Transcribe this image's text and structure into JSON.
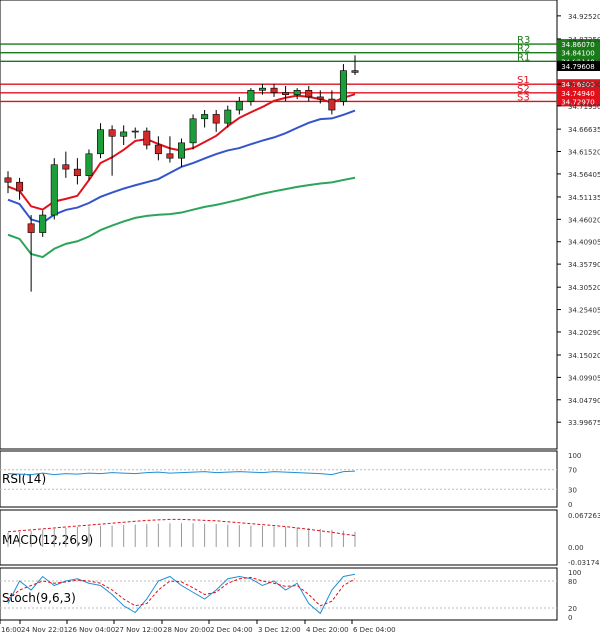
{
  "chart_data": {
    "type": "candlestick",
    "instrument_title": "",
    "main_panel": {
      "ylim": [
        33.94,
        34.95
      ],
      "price_ticks": [
        "34.92520",
        "34.87250",
        "34.82140",
        "34.76900",
        "34.71950",
        "34.66635",
        "34.61520",
        "34.56405",
        "34.51135",
        "34.46020",
        "34.40905",
        "34.35790",
        "34.30520",
        "34.25405",
        "34.20290",
        "34.15020",
        "34.09905",
        "34.04790",
        "33.99675"
      ],
      "current_price": "34.79608",
      "levels": [
        {
          "name": "R3",
          "value": "34.86070",
          "color": "#1a7a1a"
        },
        {
          "name": "R2",
          "value": "34.84100",
          "color": "#1a7a1a"
        },
        {
          "name": "R1",
          "value": "34.82140",
          "color": "#1a7a1a"
        },
        {
          "name": "S1",
          "value": "34.76900",
          "color": "#e0111b"
        },
        {
          "name": "S2",
          "value": "34.74940",
          "color": "#e0111b"
        },
        {
          "name": "S3",
          "value": "34.72970",
          "color": "#e0111b"
        }
      ],
      "candles": [
        {
          "o": 34.555,
          "h": 34.57,
          "l": 34.52,
          "c": 34.545
        },
        {
          "o": 34.545,
          "h": 34.555,
          "l": 34.505,
          "c": 34.525
        },
        {
          "o": 34.45,
          "h": 34.47,
          "l": 34.295,
          "c": 34.43
        },
        {
          "o": 34.43,
          "h": 34.48,
          "l": 34.42,
          "c": 34.47
        },
        {
          "o": 34.47,
          "h": 34.6,
          "l": 34.46,
          "c": 34.585
        },
        {
          "o": 34.585,
          "h": 34.615,
          "l": 34.555,
          "c": 34.575
        },
        {
          "o": 34.575,
          "h": 34.6,
          "l": 34.54,
          "c": 34.56
        },
        {
          "o": 34.56,
          "h": 34.62,
          "l": 34.55,
          "c": 34.61
        },
        {
          "o": 34.61,
          "h": 34.68,
          "l": 34.6,
          "c": 34.665
        },
        {
          "o": 34.665,
          "h": 34.675,
          "l": 34.56,
          "c": 34.65
        },
        {
          "o": 34.65,
          "h": 34.675,
          "l": 34.63,
          "c": 34.66
        },
        {
          "o": 34.66,
          "h": 34.67,
          "l": 34.645,
          "c": 34.662
        },
        {
          "o": 34.662,
          "h": 34.67,
          "l": 34.62,
          "c": 34.63
        },
        {
          "o": 34.63,
          "h": 34.65,
          "l": 34.595,
          "c": 34.61
        },
        {
          "o": 34.61,
          "h": 34.65,
          "l": 34.59,
          "c": 34.6
        },
        {
          "o": 34.6,
          "h": 34.645,
          "l": 34.58,
          "c": 34.635
        },
        {
          "o": 34.635,
          "h": 34.7,
          "l": 34.62,
          "c": 34.69
        },
        {
          "o": 34.69,
          "h": 34.71,
          "l": 34.67,
          "c": 34.7
        },
        {
          "o": 34.7,
          "h": 34.71,
          "l": 34.66,
          "c": 34.68
        },
        {
          "o": 34.68,
          "h": 34.72,
          "l": 34.67,
          "c": 34.71
        },
        {
          "o": 34.71,
          "h": 34.74,
          "l": 34.7,
          "c": 34.73
        },
        {
          "o": 34.73,
          "h": 34.76,
          "l": 34.72,
          "c": 34.755
        },
        {
          "o": 34.755,
          "h": 34.77,
          "l": 34.745,
          "c": 34.76
        },
        {
          "o": 34.76,
          "h": 34.77,
          "l": 34.74,
          "c": 34.75
        },
        {
          "o": 34.75,
          "h": 34.765,
          "l": 34.73,
          "c": 34.745
        },
        {
          "o": 34.745,
          "h": 34.76,
          "l": 34.735,
          "c": 34.755
        },
        {
          "o": 34.755,
          "h": 34.765,
          "l": 34.73,
          "c": 34.74
        },
        {
          "o": 34.74,
          "h": 34.755,
          "l": 34.725,
          "c": 34.735
        },
        {
          "o": 34.735,
          "h": 34.755,
          "l": 34.7,
          "c": 34.71
        },
        {
          "o": 34.73,
          "h": 34.815,
          "l": 34.72,
          "c": 34.8
        },
        {
          "o": 34.8,
          "h": 34.835,
          "l": 34.79,
          "c": 34.796
        }
      ]
    },
    "x_tick_labels": [
      "16:00",
      "24 Nov 22:01",
      "26 Nov 04:00",
      "27 Nov 12:00",
      "28 Nov 20:00",
      "2 Dec 04:00",
      "3 Dec 12:00",
      "4 Dec 20:00",
      "6 Dec 04:00"
    ],
    "rsi": {
      "label": "RSI(14)",
      "ticks": [
        "100",
        "70",
        "30",
        "0"
      ],
      "levels": [
        70,
        30
      ],
      "values": [
        62,
        61,
        60,
        63,
        60,
        62,
        61,
        63,
        62,
        64,
        63,
        62,
        64,
        65,
        63,
        64,
        65,
        66,
        64,
        65,
        66,
        65,
        64,
        66,
        65,
        64,
        63,
        62,
        60,
        66,
        67
      ]
    },
    "macd": {
      "label": "MACD(12,26,9)",
      "ticks": [
        "0.067263",
        "0.00",
        "-0.031746"
      ],
      "histogram": [
        0.03,
        0.032,
        0.034,
        0.036,
        0.038,
        0.04,
        0.042,
        0.043,
        0.044,
        0.045,
        0.046,
        0.047,
        0.048,
        0.049,
        0.05,
        0.05,
        0.05,
        0.049,
        0.048,
        0.047,
        0.046,
        0.045,
        0.044,
        0.043,
        0.042,
        0.041,
        0.04,
        0.038,
        0.036,
        0.034,
        0.032
      ],
      "signal": [
        0.032,
        0.034,
        0.036,
        0.038,
        0.04,
        0.042,
        0.044,
        0.046,
        0.048,
        0.05,
        0.052,
        0.054,
        0.056,
        0.057,
        0.058,
        0.058,
        0.057,
        0.056,
        0.055,
        0.053,
        0.051,
        0.049,
        0.047,
        0.045,
        0.043,
        0.04,
        0.037,
        0.034,
        0.031,
        0.027,
        0.024
      ]
    },
    "stoch": {
      "label": "Stoch(9,6,3)",
      "ticks": [
        "100",
        "80",
        "20",
        "0"
      ],
      "levels": [
        80,
        20
      ],
      "k": [
        30,
        80,
        60,
        90,
        70,
        80,
        85,
        75,
        70,
        50,
        25,
        10,
        40,
        80,
        90,
        70,
        55,
        40,
        60,
        85,
        90,
        85,
        70,
        80,
        60,
        75,
        30,
        8,
        60,
        90,
        95
      ],
      "d": [
        40,
        60,
        70,
        80,
        75,
        78,
        82,
        80,
        75,
        60,
        40,
        25,
        30,
        60,
        80,
        78,
        65,
        50,
        55,
        75,
        85,
        88,
        80,
        75,
        68,
        70,
        50,
        25,
        35,
        70,
        85
      ]
    }
  }
}
